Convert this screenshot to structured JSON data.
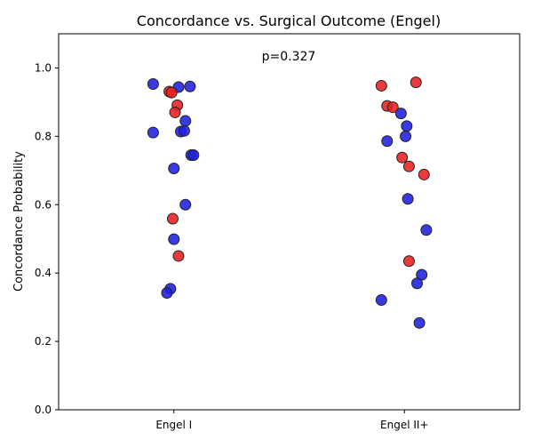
{
  "chart_data": {
    "type": "scatter",
    "title": "Concordance vs. Surgical Outcome (Engel)",
    "xlabel": "",
    "ylabel": "Concordance Probability",
    "categories": [
      "Engel I",
      "Engel II+"
    ],
    "ylim": [
      0.0,
      1.1
    ],
    "yticks": [
      "0.0",
      "0.2",
      "0.4",
      "0.6",
      "0.8",
      "1.0"
    ],
    "annotation": "p=0.327",
    "grid": false,
    "colors": {
      "blue": "#1f1fe0",
      "red": "#e81f1f",
      "edge": "#222222"
    },
    "points": [
      {
        "category": "Engel I",
        "jitter": -0.09,
        "y": 0.953,
        "color": "blue"
      },
      {
        "category": "Engel I",
        "jitter": 0.02,
        "y": 0.944,
        "color": "blue"
      },
      {
        "category": "Engel I",
        "jitter": 0.07,
        "y": 0.946,
        "color": "blue"
      },
      {
        "category": "Engel I",
        "jitter": -0.02,
        "y": 0.931,
        "color": "red"
      },
      {
        "category": "Engel I",
        "jitter": -0.01,
        "y": 0.928,
        "color": "red"
      },
      {
        "category": "Engel I",
        "jitter": 0.015,
        "y": 0.891,
        "color": "red"
      },
      {
        "category": "Engel I",
        "jitter": 0.005,
        "y": 0.87,
        "color": "red"
      },
      {
        "category": "Engel I",
        "jitter": 0.05,
        "y": 0.845,
        "color": "blue"
      },
      {
        "category": "Engel I",
        "jitter": -0.09,
        "y": 0.811,
        "color": "blue"
      },
      {
        "category": "Engel I",
        "jitter": 0.03,
        "y": 0.814,
        "color": "blue"
      },
      {
        "category": "Engel I",
        "jitter": 0.045,
        "y": 0.816,
        "color": "blue"
      },
      {
        "category": "Engel I",
        "jitter": 0.075,
        "y": 0.745,
        "color": "blue"
      },
      {
        "category": "Engel I",
        "jitter": 0.085,
        "y": 0.745,
        "color": "blue"
      },
      {
        "category": "Engel I",
        "jitter": 0.0,
        "y": 0.706,
        "color": "blue"
      },
      {
        "category": "Engel I",
        "jitter": 0.05,
        "y": 0.6,
        "color": "blue"
      },
      {
        "category": "Engel I",
        "jitter": -0.005,
        "y": 0.559,
        "color": "red"
      },
      {
        "category": "Engel I",
        "jitter": 0.0,
        "y": 0.499,
        "color": "blue"
      },
      {
        "category": "Engel I",
        "jitter": 0.02,
        "y": 0.45,
        "color": "red"
      },
      {
        "category": "Engel I",
        "jitter": -0.015,
        "y": 0.354,
        "color": "blue"
      },
      {
        "category": "Engel I",
        "jitter": -0.03,
        "y": 0.342,
        "color": "blue"
      },
      {
        "category": "Engel II+",
        "jitter": 0.05,
        "y": 0.958,
        "color": "red"
      },
      {
        "category": "Engel II+",
        "jitter": -0.1,
        "y": 0.948,
        "color": "red"
      },
      {
        "category": "Engel II+",
        "jitter": -0.075,
        "y": 0.889,
        "color": "red"
      },
      {
        "category": "Engel II+",
        "jitter": -0.05,
        "y": 0.885,
        "color": "red"
      },
      {
        "category": "Engel II+",
        "jitter": -0.015,
        "y": 0.867,
        "color": "blue"
      },
      {
        "category": "Engel II+",
        "jitter": 0.01,
        "y": 0.83,
        "color": "blue"
      },
      {
        "category": "Engel II+",
        "jitter": 0.005,
        "y": 0.8,
        "color": "blue"
      },
      {
        "category": "Engel II+",
        "jitter": -0.075,
        "y": 0.786,
        "color": "blue"
      },
      {
        "category": "Engel II+",
        "jitter": -0.01,
        "y": 0.738,
        "color": "red"
      },
      {
        "category": "Engel II+",
        "jitter": 0.02,
        "y": 0.712,
        "color": "red"
      },
      {
        "category": "Engel II+",
        "jitter": 0.085,
        "y": 0.688,
        "color": "red"
      },
      {
        "category": "Engel II+",
        "jitter": 0.015,
        "y": 0.617,
        "color": "blue"
      },
      {
        "category": "Engel II+",
        "jitter": 0.095,
        "y": 0.526,
        "color": "blue"
      },
      {
        "category": "Engel II+",
        "jitter": 0.02,
        "y": 0.435,
        "color": "red"
      },
      {
        "category": "Engel II+",
        "jitter": 0.075,
        "y": 0.395,
        "color": "blue"
      },
      {
        "category": "Engel II+",
        "jitter": 0.055,
        "y": 0.37,
        "color": "blue"
      },
      {
        "category": "Engel II+",
        "jitter": -0.1,
        "y": 0.321,
        "color": "blue"
      },
      {
        "category": "Engel II+",
        "jitter": 0.065,
        "y": 0.254,
        "color": "blue"
      }
    ]
  }
}
